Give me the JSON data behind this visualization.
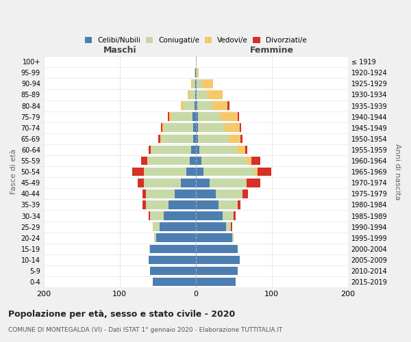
{
  "age_groups": [
    "0-4",
    "5-9",
    "10-14",
    "15-19",
    "20-24",
    "25-29",
    "30-34",
    "35-39",
    "40-44",
    "45-49",
    "50-54",
    "55-59",
    "60-64",
    "65-69",
    "70-74",
    "75-79",
    "80-84",
    "85-89",
    "90-94",
    "95-99",
    "100+"
  ],
  "birth_years": [
    "2015-2019",
    "2010-2014",
    "2005-2009",
    "2000-2004",
    "1995-1999",
    "1990-1994",
    "1985-1989",
    "1980-1984",
    "1975-1979",
    "1970-1974",
    "1965-1969",
    "1960-1964",
    "1955-1959",
    "1950-1954",
    "1945-1949",
    "1940-1944",
    "1935-1939",
    "1930-1934",
    "1925-1929",
    "1920-1924",
    "≤ 1919"
  ],
  "male_celibe": [
    57,
    60,
    62,
    60,
    52,
    48,
    42,
    36,
    28,
    20,
    12,
    8,
    6,
    3,
    3,
    4,
    2,
    1,
    1,
    1,
    0
  ],
  "male_coniugato": [
    0,
    0,
    0,
    1,
    3,
    8,
    18,
    30,
    38,
    48,
    55,
    55,
    52,
    42,
    38,
    28,
    14,
    7,
    3,
    1,
    0
  ],
  "male_vedovo": [
    0,
    0,
    0,
    0,
    0,
    1,
    0,
    0,
    0,
    0,
    1,
    1,
    1,
    2,
    3,
    3,
    4,
    3,
    2,
    0,
    0
  ],
  "male_divorziato": [
    0,
    0,
    0,
    0,
    0,
    0,
    2,
    4,
    4,
    8,
    16,
    8,
    3,
    2,
    2,
    2,
    0,
    0,
    0,
    0,
    0
  ],
  "female_celibe": [
    52,
    55,
    58,
    55,
    48,
    40,
    35,
    30,
    26,
    18,
    10,
    7,
    5,
    3,
    3,
    3,
    2,
    1,
    1,
    0,
    0
  ],
  "female_coniugata": [
    0,
    0,
    0,
    0,
    2,
    6,
    15,
    25,
    35,
    48,
    68,
    60,
    50,
    40,
    35,
    30,
    20,
    14,
    7,
    2,
    0
  ],
  "female_vedova": [
    0,
    0,
    0,
    0,
    0,
    0,
    0,
    0,
    0,
    1,
    3,
    6,
    10,
    16,
    20,
    22,
    20,
    20,
    15,
    2,
    1
  ],
  "female_divorziata": [
    0,
    0,
    0,
    0,
    0,
    2,
    2,
    4,
    8,
    18,
    18,
    12,
    3,
    2,
    2,
    2,
    2,
    0,
    0,
    0,
    0
  ],
  "color_celibe": "#4d7eb2",
  "color_coniugato": "#c8d9a8",
  "color_vedovo": "#f5c96a",
  "color_divorziato": "#d73027",
  "title": "Popolazione per età, sesso e stato civile - 2020",
  "subtitle": "COMUNE DI MONTEGALDA (VI) - Dati ISTAT 1° gennaio 2020 - Elaborazione TUTTITALIA.IT",
  "xlabel_maschi": "Maschi",
  "xlabel_femmine": "Femmine",
  "ylabel_left": "Fasce di età",
  "ylabel_right": "Anni di nascita",
  "xlim": 200,
  "bg_color": "#f0f0f0",
  "plot_bg": "#ffffff"
}
